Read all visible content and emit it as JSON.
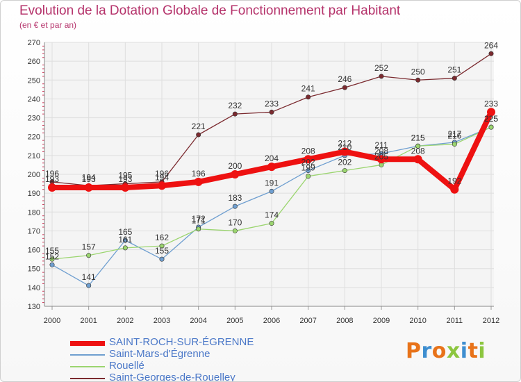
{
  "title": "Evolution de la Dotation Globale de Fonctionnement par Habitant",
  "subtitle": "(en € et par an)",
  "logo": {
    "letters": [
      "P",
      "r",
      "o",
      "x",
      "i",
      "t",
      "i"
    ],
    "colors": [
      "#e8731a",
      "#3d8ed0",
      "#e8731a",
      "#8cc63f",
      "#3d8ed0",
      "#e8731a",
      "#8cc63f"
    ]
  },
  "chart_data": {
    "type": "line",
    "title": "Evolution de la Dotation Globale de Fonctionnement par Habitant",
    "subtitle": "(en € et par an)",
    "x": [
      "2000",
      "2001",
      "2002",
      "2003",
      "2004",
      "2005",
      "2006",
      "2007",
      "2008",
      "2009",
      "2010",
      "2011",
      "2012"
    ],
    "ylim": [
      130,
      270
    ],
    "yticks": [
      130,
      140,
      150,
      160,
      170,
      180,
      190,
      200,
      210,
      220,
      230,
      240,
      250,
      260,
      270
    ],
    "grid": true,
    "legend_position": "bottom-left",
    "series": [
      {
        "name": "Saint-Georges-de-Rouelley",
        "color": "#7b2a2f",
        "width": 1.3,
        "values": [
          196,
          194,
          195,
          196,
          221,
          232,
          233,
          241,
          246,
          252,
          250,
          251,
          264
        ],
        "labels": [
          "196",
          "194",
          "195",
          "196",
          "221",
          "232",
          "233",
          "241",
          "246",
          "252",
          "250",
          "251",
          "264"
        ]
      },
      {
        "name": "Saint-Mars-d'Égrenne",
        "color": "#6f9fd0",
        "width": 1.3,
        "values": [
          152,
          141,
          165,
          155,
          172,
          183,
          191,
          202,
          210,
          211,
          215,
          217,
          225
        ],
        "labels": [
          "152",
          "141",
          "165",
          "155",
          "172",
          "183",
          "191",
          "202",
          "210",
          "211",
          "215",
          "217",
          "225"
        ]
      },
      {
        "name": "Rouellé",
        "color": "#9bd56f",
        "width": 1.3,
        "values": [
          155,
          157,
          161,
          162,
          171,
          170,
          174,
          199,
          202,
          205,
          215,
          216,
          225
        ],
        "labels": [
          "155",
          "157",
          "161",
          "162",
          "171",
          "170",
          "174",
          "199",
          "202",
          "205",
          "215",
          "216",
          "225"
        ]
      },
      {
        "name": "SAINT-ROCH-SUR-ÉGRENNE",
        "color": "#ee1111",
        "width": 8,
        "values": [
          193,
          193,
          193,
          194,
          196,
          200,
          204,
          208,
          212,
          208,
          208,
          192,
          233
        ],
        "labels": [
          "193",
          "193",
          "193",
          "194",
          "196",
          "200",
          "204",
          "208",
          "212",
          "208",
          "208",
          "192",
          "233"
        ]
      }
    ],
    "legend": [
      "SAINT-ROCH-SUR-ÉGRENNE",
      "Saint-Mars-d'Égrenne",
      "Rouellé",
      "Saint-Georges-de-Rouelley"
    ]
  }
}
